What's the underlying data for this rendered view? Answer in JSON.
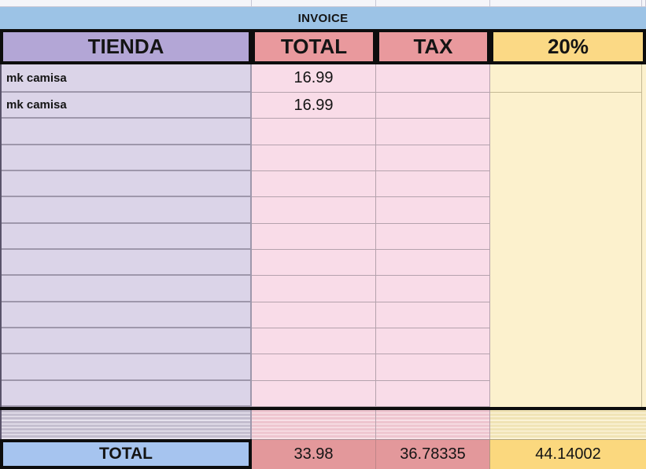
{
  "title_bar": {
    "label": "INVOICE"
  },
  "columns": {
    "tienda": "TIENDA",
    "total": "TOTAL",
    "tax": "TAX",
    "pct": "20%"
  },
  "rows": [
    {
      "tienda": "mk camisa",
      "total": "16.99",
      "tax": ""
    },
    {
      "tienda": "mk camisa",
      "total": "16.99",
      "tax": ""
    },
    {
      "tienda": "",
      "total": "",
      "tax": ""
    },
    {
      "tienda": "",
      "total": "",
      "tax": ""
    },
    {
      "tienda": "",
      "total": "",
      "tax": ""
    },
    {
      "tienda": "",
      "total": "",
      "tax": ""
    },
    {
      "tienda": "",
      "total": "",
      "tax": ""
    },
    {
      "tienda": "",
      "total": "",
      "tax": ""
    },
    {
      "tienda": "",
      "total": "",
      "tax": ""
    },
    {
      "tienda": "",
      "total": "",
      "tax": ""
    },
    {
      "tienda": "",
      "total": "",
      "tax": ""
    },
    {
      "tienda": "",
      "total": "",
      "tax": ""
    },
    {
      "tienda": "",
      "total": "",
      "tax": ""
    }
  ],
  "totals": {
    "label": "TOTAL",
    "total": "33.98",
    "tax": "36.78335",
    "pct": "44.14002"
  },
  "colors": {
    "invoice_bar": "#9cc3e6",
    "header_purple": "#b3a6d6",
    "header_red": "#e9999d",
    "header_yellow": "#fbd985",
    "cell_lavender": "#dbd4e8",
    "cell_pink": "#f9dce8",
    "cell_cream": "#fcf1cd",
    "total_blue": "#a6c4ef",
    "total_red": "#e3989b",
    "total_yellow": "#fbd87e",
    "top_highlight": "#dde1f6",
    "strip_border": "#c7c7d6",
    "grid_lav": "#9e97ab",
    "grid_pink": "#b5a2ad",
    "grid_cream": "#c5b995",
    "stripe_lav": "#c3bdce",
    "stripe_lav_lt": "#e7e3ee",
    "stripe_pink": "#eec5cf",
    "stripe_pink_lt": "#f8e1e7",
    "stripe_yellow": "#f0e3b5",
    "stripe_yellow_lt": "#fbf3d7",
    "black": "#0d0d0d"
  }
}
